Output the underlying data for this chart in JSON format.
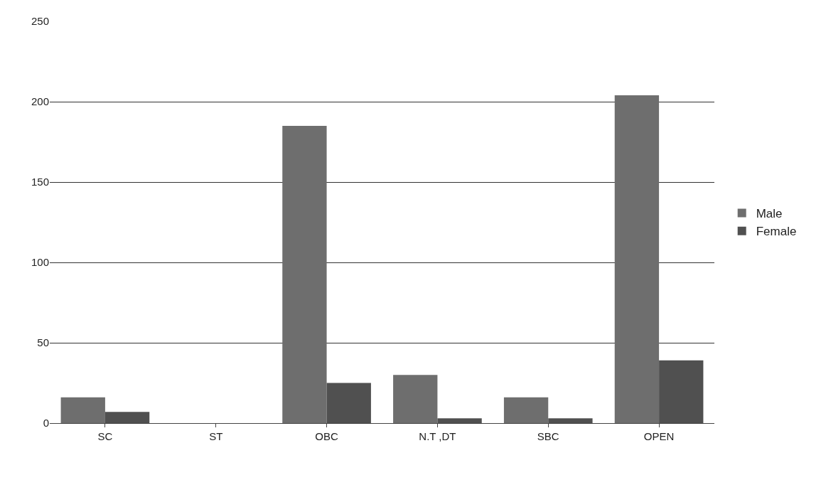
{
  "chart_data": {
    "type": "bar",
    "categories": [
      "SC",
      "ST",
      "OBC",
      "N.T ,DT",
      "SBC",
      "OPEN"
    ],
    "series": [
      {
        "name": "Male",
        "color": "#6e6e6e",
        "values": [
          16,
          0,
          185,
          30,
          16,
          204
        ]
      },
      {
        "name": "Female",
        "color": "#505050",
        "values": [
          7,
          0,
          25,
          3,
          3,
          39
        ]
      }
    ],
    "ylim": [
      0,
      250
    ],
    "yticks": [
      0,
      50,
      100,
      150,
      200,
      250
    ],
    "grid": "y",
    "legend": "right"
  }
}
